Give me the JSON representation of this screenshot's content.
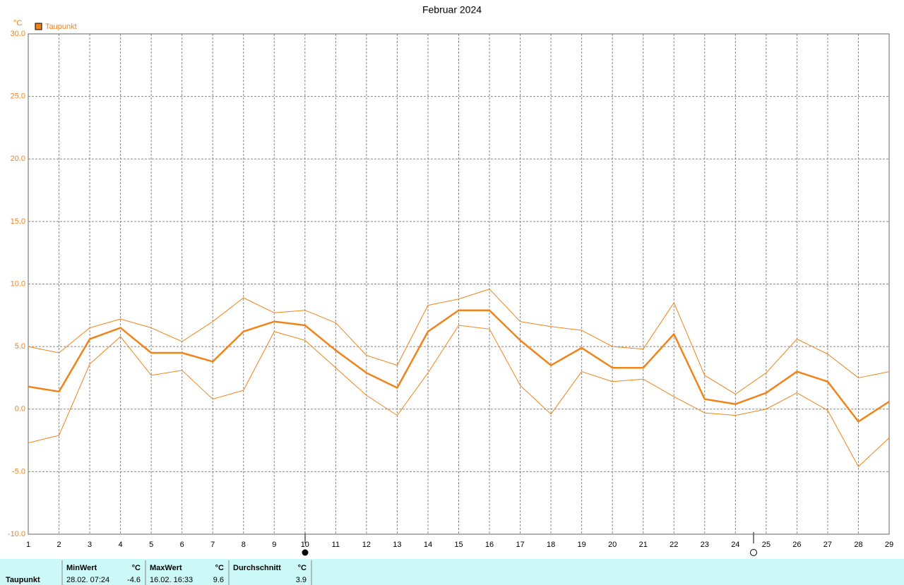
{
  "chart_data": {
    "type": "line",
    "title": "Februar 2024",
    "y_unit": "°C",
    "legend": "bottom-left",
    "x": [
      1,
      2,
      3,
      4,
      5,
      6,
      7,
      8,
      9,
      10,
      11,
      12,
      13,
      14,
      15,
      16,
      17,
      18,
      19,
      20,
      21,
      22,
      23,
      24,
      25,
      26,
      27,
      28,
      29
    ],
    "xlim": [
      1,
      29
    ],
    "xticks": [
      1,
      2,
      3,
      4,
      5,
      6,
      7,
      8,
      9,
      10,
      11,
      12,
      13,
      14,
      15,
      16,
      17,
      18,
      19,
      20,
      21,
      22,
      23,
      24,
      25,
      26,
      27,
      28,
      29
    ],
    "ylim": [
      -10,
      30
    ],
    "yticks": [
      {
        "value": -10,
        "label": "-10.0"
      },
      {
        "value": -5,
        "label": "-5.0"
      },
      {
        "value": 0,
        "label": "0.0"
      },
      {
        "value": 5,
        "label": "5.0"
      },
      {
        "value": 10,
        "label": "10.0"
      },
      {
        "value": 15,
        "label": "15.0"
      },
      {
        "value": 20,
        "label": "20.0"
      },
      {
        "value": 25,
        "label": "25.0"
      },
      {
        "value": 30,
        "label": "30.0"
      }
    ],
    "grid": true,
    "series": [
      {
        "name": "Taupunkt",
        "color": "#f0841a",
        "values": [
          1.8,
          1.4,
          5.6,
          6.5,
          4.5,
          4.5,
          3.8,
          6.2,
          7.0,
          6.7,
          4.7,
          2.9,
          1.7,
          6.2,
          7.9,
          7.9,
          5.5,
          3.5,
          4.9,
          3.3,
          3.3,
          6.0,
          0.8,
          0.4,
          1.3,
          3.0,
          2.2,
          -1.0,
          0.6
        ],
        "max_values": [
          5.0,
          4.5,
          6.5,
          7.2,
          6.5,
          5.4,
          7.0,
          8.9,
          7.7,
          7.9,
          6.9,
          4.3,
          3.5,
          8.3,
          8.8,
          9.6,
          7.0,
          6.6,
          6.3,
          5.0,
          4.8,
          8.5,
          2.7,
          1.2,
          2.9,
          5.6,
          4.4,
          2.5,
          3.0
        ],
        "min_values": [
          -2.7,
          -2.1,
          3.6,
          5.8,
          2.7,
          3.1,
          0.8,
          1.5,
          6.2,
          5.5,
          3.3,
          1.1,
          -0.5,
          2.9,
          6.7,
          6.4,
          1.9,
          -0.4,
          3.0,
          2.2,
          2.4,
          1.0,
          -0.3,
          -0.5,
          0.0,
          1.3,
          -0.1,
          -4.6,
          -2.3
        ]
      }
    ]
  },
  "summary": {
    "row_label": "Taupunkt",
    "min": {
      "header": "MinWert",
      "unit": "°C",
      "time": "28.02.  07:24",
      "value": -4.6
    },
    "max": {
      "header": "MaxWert",
      "unit": "°C",
      "time": "16.02.  16:33",
      "value": 9.6
    },
    "avg": {
      "header": "Durchschnitt",
      "unit": "°C",
      "value": 3.9
    }
  }
}
